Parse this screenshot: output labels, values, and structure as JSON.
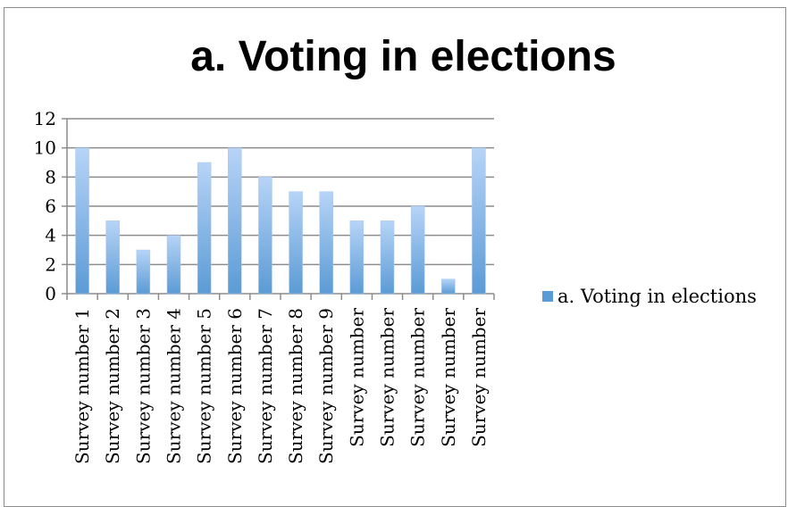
{
  "chart_data": {
    "type": "bar",
    "title": "a. Voting in elections",
    "xlabel": "",
    "ylabel": "",
    "ylim": [
      0,
      12
    ],
    "yticks": [
      0,
      2,
      4,
      6,
      8,
      10,
      12
    ],
    "grid": true,
    "legend_position": "right",
    "categories": [
      "Survey number 1",
      "Survey number 2",
      "Survey number 3",
      "Survey number 4",
      "Survey number 5",
      "Survey number 6",
      "Survey number 7",
      "Survey number 8",
      "Survey number 9",
      "Survey number",
      "Survey number",
      "Survey number",
      "Survey number",
      "Survey number"
    ],
    "series": [
      {
        "name": "a. Voting in elections",
        "color": "#5b9bd5",
        "values": [
          10,
          5,
          3,
          4,
          9,
          10,
          8,
          7,
          7,
          5,
          5,
          6,
          1,
          10
        ]
      }
    ]
  }
}
